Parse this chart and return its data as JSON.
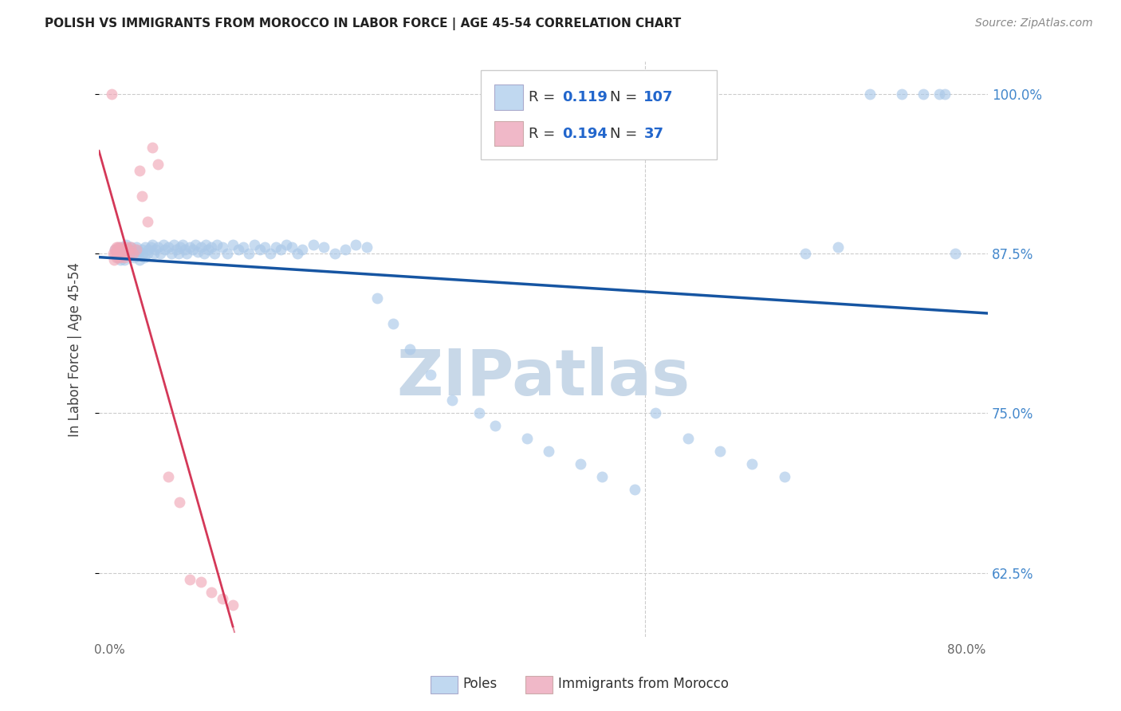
{
  "title": "POLISH VS IMMIGRANTS FROM MOROCCO IN LABOR FORCE | AGE 45-54 CORRELATION CHART",
  "source": "Source: ZipAtlas.com",
  "ylabel": "In Labor Force | Age 45-54",
  "xlim": [
    -0.01,
    0.82
  ],
  "ylim": [
    0.575,
    1.025
  ],
  "xtick_positions": [
    0.0,
    0.1,
    0.2,
    0.3,
    0.4,
    0.5,
    0.6,
    0.7,
    0.8
  ],
  "xticklabels": [
    "0.0%",
    "",
    "",
    "",
    "",
    "",
    "",
    "",
    "80.0%"
  ],
  "ytick_positions": [
    0.625,
    0.75,
    0.875,
    1.0
  ],
  "ytick_labels": [
    "62.5%",
    "75.0%",
    "87.5%",
    "100.0%"
  ],
  "R_blue": 0.119,
  "N_blue": 107,
  "R_pink": 0.194,
  "N_pink": 37,
  "blue_scatter_color": "#aac8e8",
  "pink_scatter_color": "#f0a8b8",
  "blue_line_color": "#1655a2",
  "pink_line_color": "#d43858",
  "legend_box_blue": "#c0d8f0",
  "legend_box_pink": "#f0b8c8",
  "legend_text_color": "#333333",
  "legend_num_color": "#2266cc",
  "ytick_color": "#4488cc",
  "watermark_text": "ZIPatlas",
  "watermark_color": "#c8d8e8"
}
